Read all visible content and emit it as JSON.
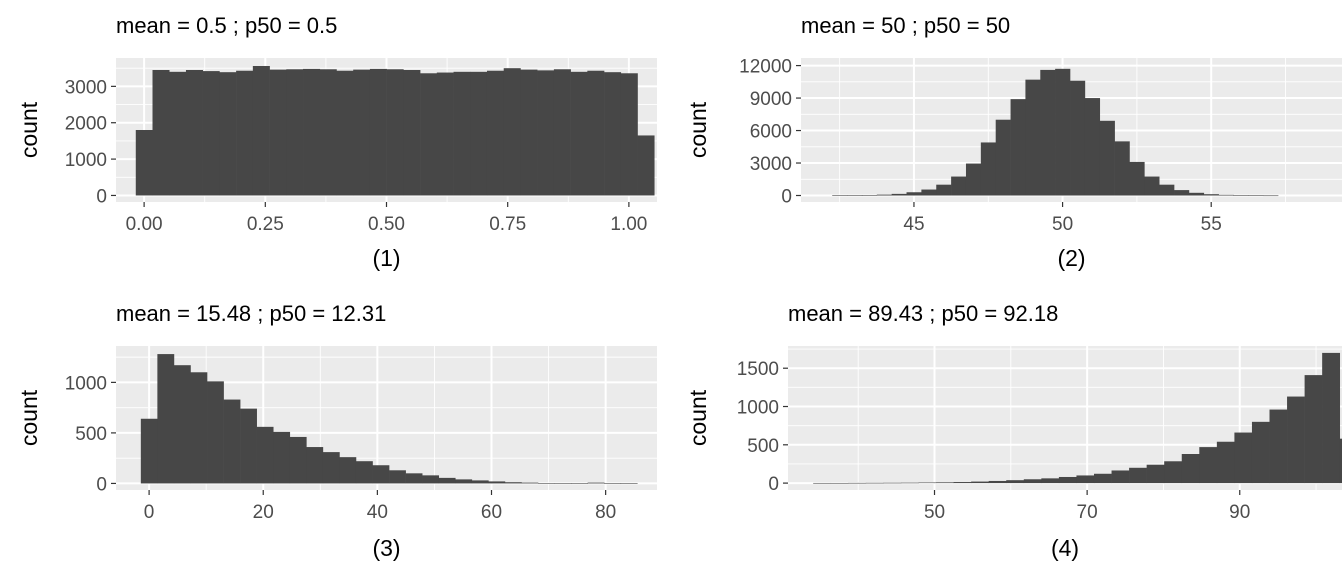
{
  "chart_data": [
    {
      "type": "bar",
      "title": "mean =  0.5 ; p50 =  0.5",
      "xlabel": "(1)",
      "ylabel": "count",
      "xlim": [
        -0.058,
        1.058
      ],
      "ylim": [
        -180,
        3780
      ],
      "x_ticks": [
        0.0,
        0.25,
        0.5,
        0.75,
        1.0
      ],
      "x_tick_labels": [
        "0.00",
        "0.25",
        "0.50",
        "0.75",
        "1.00"
      ],
      "y_ticks": [
        0,
        1000,
        2000,
        3000
      ],
      "y_tick_labels": [
        "0",
        "1000",
        "2000",
        "3000"
      ],
      "bin_width": 0.0345,
      "bin_start": -0.0172,
      "values": [
        1800,
        3450,
        3400,
        3450,
        3420,
        3390,
        3430,
        3560,
        3460,
        3470,
        3480,
        3470,
        3430,
        3460,
        3480,
        3470,
        3450,
        3360,
        3380,
        3400,
        3400,
        3430,
        3500,
        3460,
        3440,
        3470,
        3400,
        3430,
        3390,
        3360,
        1650
      ]
    },
    {
      "type": "bar",
      "title": "mean =  50 ; p50 =  50",
      "xlabel": "(2)",
      "ylabel": "count",
      "xlim": [
        41.2,
        59.4
      ],
      "ylim": [
        -600,
        12700
      ],
      "x_ticks": [
        45,
        50,
        55
      ],
      "x_tick_labels": [
        "45",
        "50",
        "55"
      ],
      "y_ticks": [
        0,
        3000,
        6000,
        9000,
        12000
      ],
      "y_tick_labels": [
        "0",
        "3000",
        "6000",
        "9000",
        "12000"
      ],
      "bin_width": 0.5,
      "bin_start": 42.25,
      "values": [
        10,
        20,
        40,
        80,
        150,
        300,
        550,
        1000,
        1750,
        2950,
        4900,
        7000,
        8900,
        10700,
        11600,
        11700,
        10600,
        9000,
        6900,
        5000,
        3100,
        1750,
        1000,
        500,
        250,
        120,
        60,
        20,
        10,
        5
      ]
    },
    {
      "type": "bar",
      "title": "mean =  15.48 ; p50 =  12.31",
      "xlabel": "(3)",
      "ylabel": "count",
      "xlim": [
        -5.8,
        89
      ],
      "ylim": [
        -65,
        1360
      ],
      "x_ticks": [
        0,
        20,
        40,
        60,
        80
      ],
      "x_tick_labels": [
        "0",
        "20",
        "40",
        "60",
        "80"
      ],
      "y_ticks": [
        0,
        500,
        1000
      ],
      "y_tick_labels": [
        "0",
        "500",
        "1000"
      ],
      "bin_width": 2.9,
      "bin_start": -1.45,
      "values": [
        640,
        1280,
        1170,
        1100,
        1010,
        830,
        740,
        560,
        510,
        460,
        360,
        310,
        260,
        220,
        180,
        130,
        100,
        80,
        55,
        40,
        30,
        20,
        12,
        8,
        4,
        3,
        2,
        8,
        2,
        4
      ]
    },
    {
      "type": "bar",
      "title": "mean =  89.43 ; p50 =  92.18",
      "xlabel": "(4)",
      "ylabel": "count",
      "xlim": [
        30.8,
        103.4
      ],
      "ylim": [
        -90,
        1790
      ],
      "x_ticks": [
        50,
        70,
        90
      ],
      "x_tick_labels": [
        "50",
        "70",
        "90"
      ],
      "y_ticks": [
        0,
        500,
        1000,
        1500
      ],
      "y_tick_labels": [
        "0",
        "500",
        "1000",
        "1500"
      ],
      "bin_width": 2.3,
      "bin_start": 34.1,
      "values": [
        2,
        2,
        3,
        4,
        5,
        6,
        8,
        10,
        14,
        20,
        28,
        38,
        50,
        62,
        80,
        100,
        122,
        165,
        200,
        240,
        285,
        380,
        470,
        540,
        660,
        800,
        960,
        1130,
        1410,
        1700,
        580
      ]
    }
  ]
}
